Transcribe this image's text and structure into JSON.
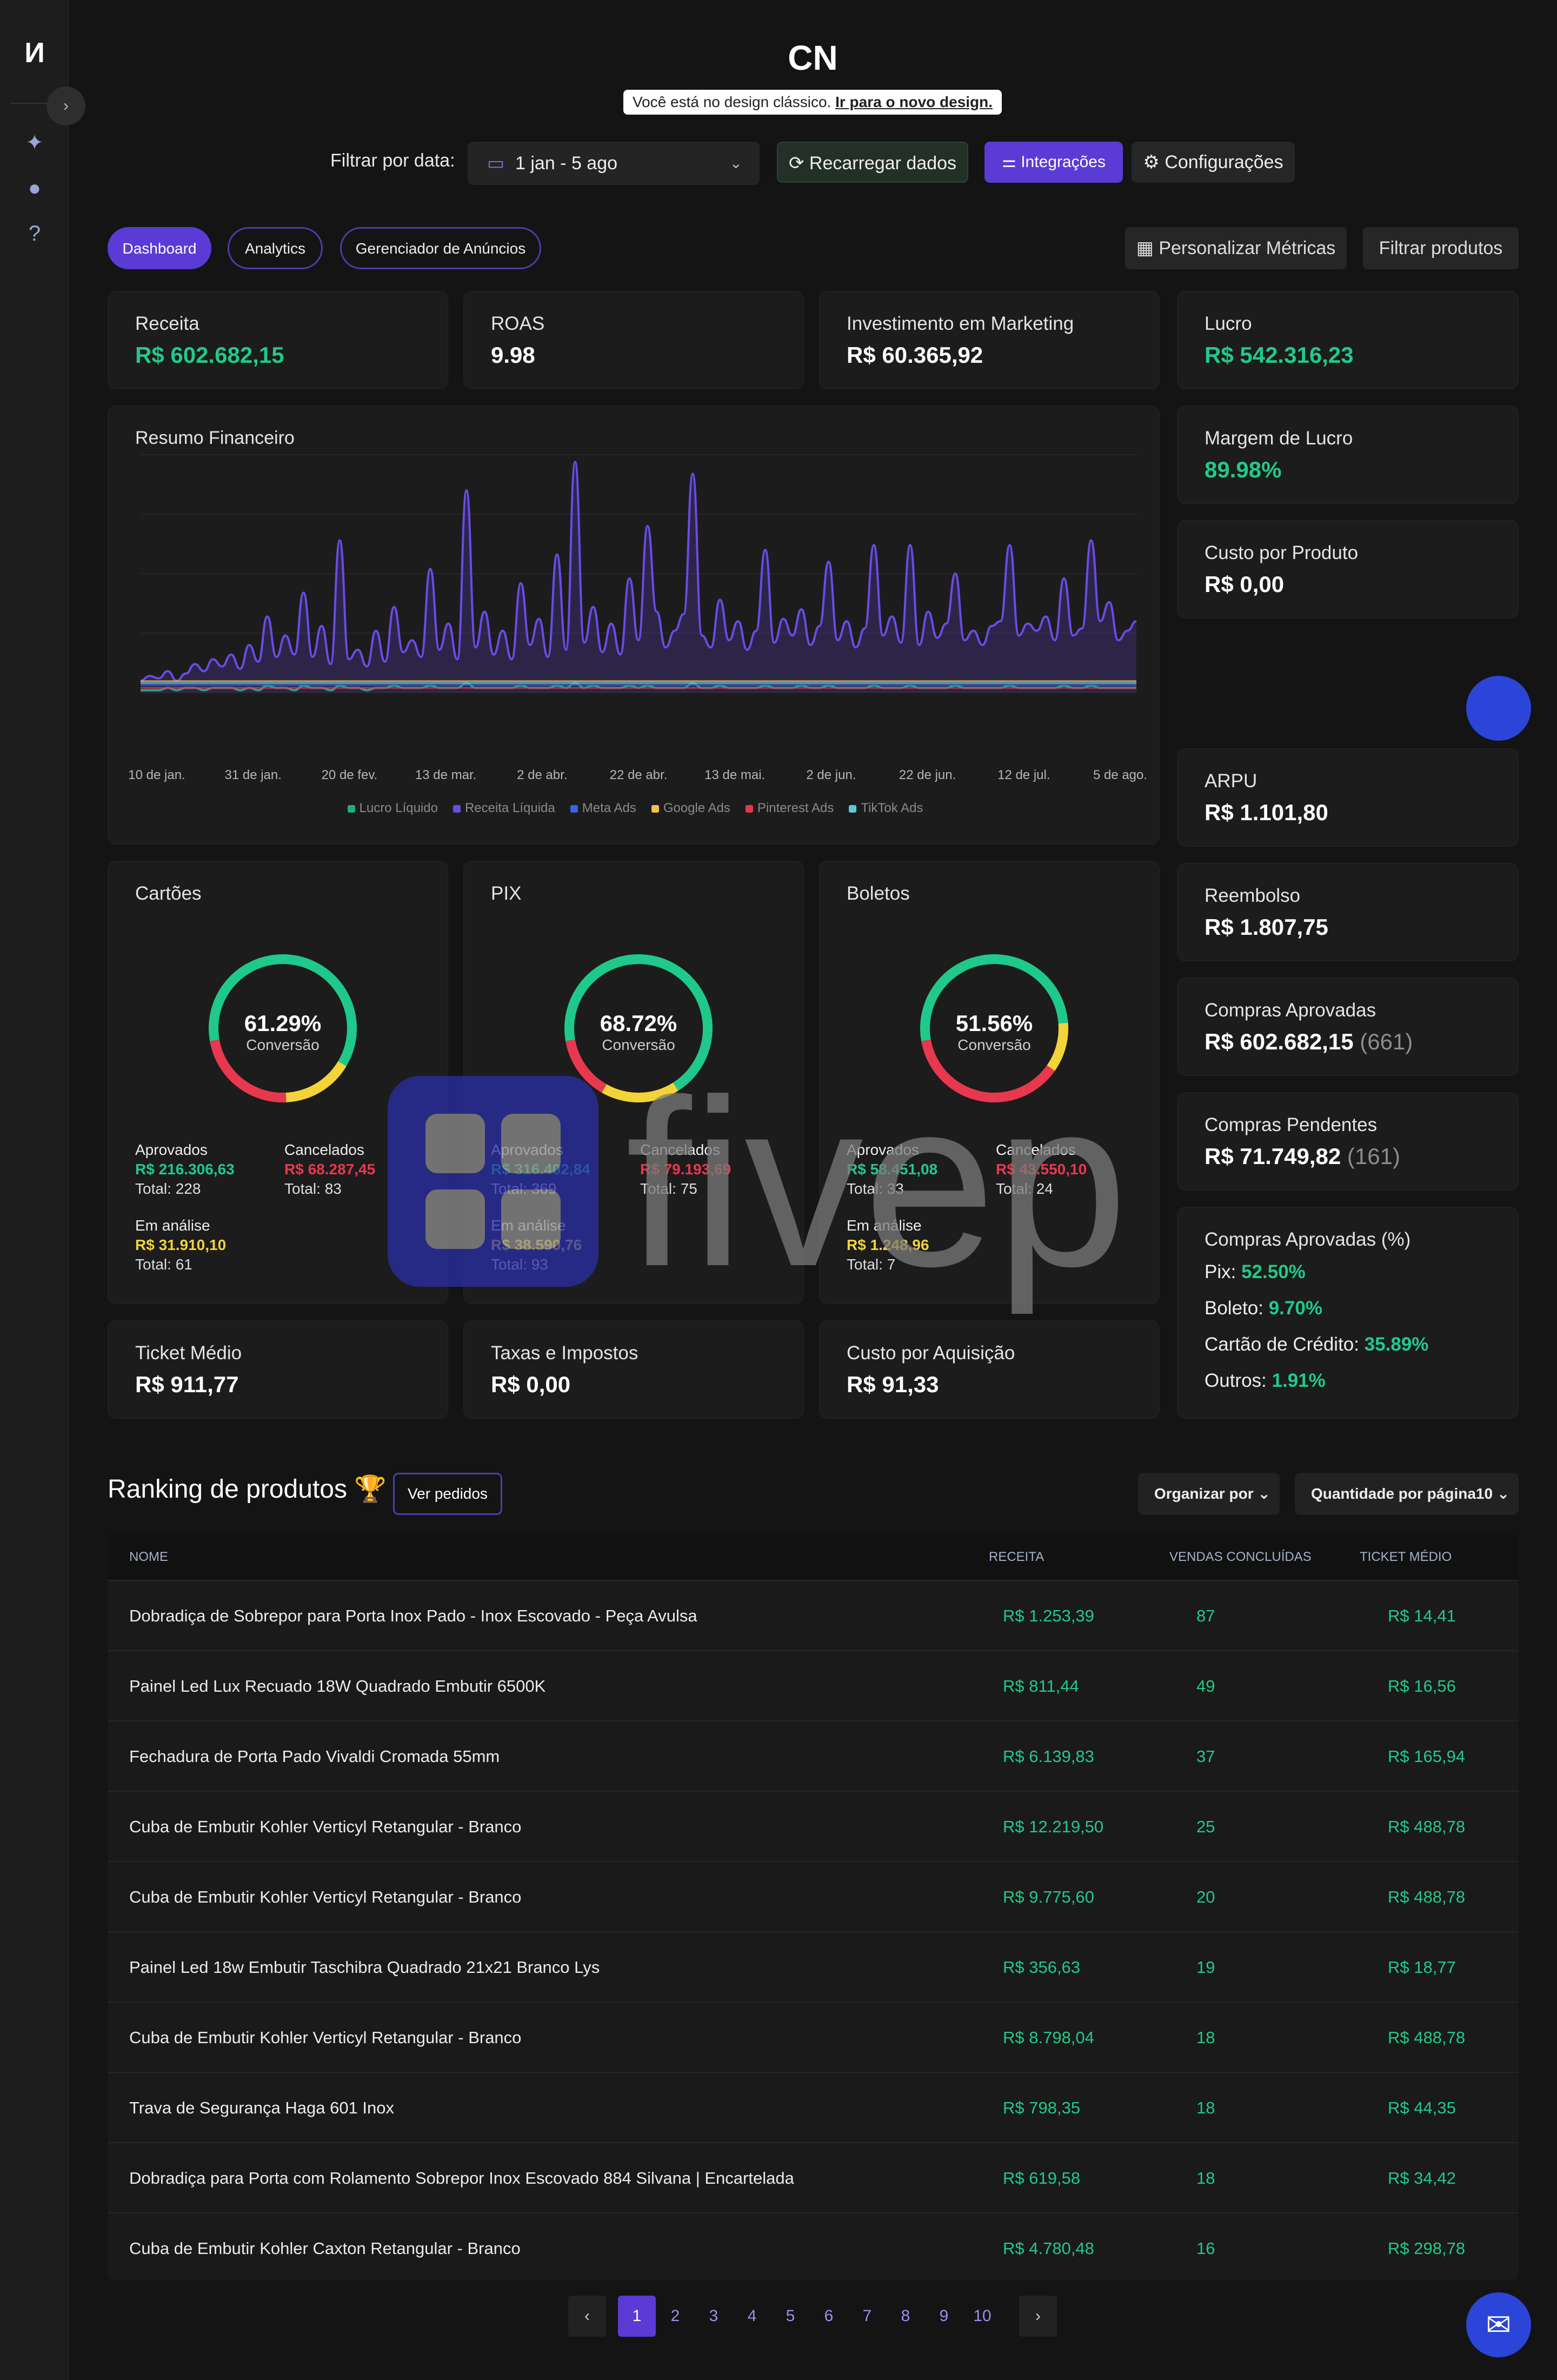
{
  "app": {
    "logo": "И",
    "title": "CN"
  },
  "banner": {
    "text": "Você está no design clássico. ",
    "link": "Ir para o novo design."
  },
  "filter": {
    "label": "Filtrar por data:",
    "date_range": "1 jan - 5 ago",
    "reload": "Recarregar dados",
    "integrations": "Integrações",
    "settings": "Configurações"
  },
  "tabs": [
    {
      "label": "Dashboard"
    },
    {
      "label": "Analytics"
    },
    {
      "label": "Gerenciador de Anúncios"
    }
  ],
  "actions": {
    "personalize": "Personalizar Métricas",
    "filter_products": "Filtrar produtos"
  },
  "kpis": {
    "receita": {
      "label": "Receita",
      "value": "R$ 602.682,15"
    },
    "roas": {
      "label": "ROAS",
      "value": "9.98"
    },
    "investimento": {
      "label": "Investimento em Marketing",
      "value": "R$ 60.365,92"
    },
    "lucro": {
      "label": "Lucro",
      "value": "R$ 542.316,23"
    },
    "margem": {
      "label": "Margem de Lucro",
      "value": "89.98%"
    },
    "custo_produto": {
      "label": "Custo por Produto",
      "value": "R$ 0,00"
    },
    "arpu": {
      "label": "ARPU",
      "value": "R$ 1.101,80"
    },
    "reembolso": {
      "label": "Reembolso",
      "value": "R$ 1.807,75"
    },
    "aprovadas": {
      "label": "Compras Aprovadas",
      "value": "R$ 602.682,15",
      "count": "(661)"
    },
    "pendentes": {
      "label": "Compras Pendentes",
      "value": "R$ 71.749,82",
      "count": "(161)"
    },
    "ticket": {
      "label": "Ticket Médio",
      "value": "R$ 911,77"
    },
    "taxas": {
      "label": "Taxas e Impostos",
      "value": "R$ 0,00"
    },
    "cpa": {
      "label": "Custo por Aquisição",
      "value": "R$ 91,33"
    }
  },
  "aprov_pct": {
    "label": "Compras Aprovadas (%)",
    "rows": [
      {
        "label": "Pix:",
        "value": "52.50%"
      },
      {
        "label": "Boleto:",
        "value": "9.70%"
      },
      {
        "label": "Cartão de Crédito:",
        "value": "35.89%"
      },
      {
        "label": "Outros:",
        "value": "1.91%"
      }
    ]
  },
  "chart": {
    "title": "Resumo Financeiro"
  },
  "chart_data": {
    "type": "line",
    "title": "Resumo Financeiro",
    "x_ticks": [
      "10 de jan.",
      "31 de jan.",
      "20 de fev.",
      "13 de mar.",
      "2 de abr.",
      "22 de abr.",
      "13 de mai.",
      "2 de jun.",
      "22 de jun.",
      "12 de jul.",
      "5 de ago."
    ],
    "legend": [
      "Lucro Líquido",
      "Receita Líquida",
      "Meta Ads",
      "Google Ads",
      "Pinterest Ads",
      "TikTok Ads"
    ],
    "colors": [
      "#23a985",
      "#6a4be6",
      "#3b63e8",
      "#f2c14e",
      "#e23a4a",
      "#5fc7d8"
    ],
    "series": [
      {
        "name": "Receita Líquida",
        "values": [
          0.5,
          0.7,
          0.6,
          0.9,
          0.5,
          0.8,
          1.2,
          0.9,
          1.4,
          1.1,
          1.6,
          1.0,
          2.0,
          1.3,
          3.2,
          1.5,
          2.4,
          1.6,
          4.2,
          1.5,
          2.8,
          1.2,
          6.4,
          1.4,
          1.8,
          1.1,
          2.6,
          1.3,
          3.6,
          1.7,
          2.2,
          1.5,
          5.2,
          1.8,
          2.9,
          1.4,
          8.5,
          1.9,
          3.4,
          1.6,
          2.6,
          1.4,
          4.6,
          2.0,
          3.1,
          1.5,
          5.8,
          1.8,
          9.7,
          2.1,
          3.6,
          1.7,
          2.9,
          1.6,
          4.8,
          2.2,
          7.0,
          3.4,
          1.9,
          2.6,
          3.3,
          9.2,
          2.4,
          1.9,
          3.9,
          2.2,
          3.0,
          1.8,
          2.6,
          6.0,
          2.1,
          3.1,
          2.4,
          3.5,
          2.0,
          2.8,
          5.5,
          2.2,
          3.0,
          1.9,
          2.7,
          6.2,
          2.4,
          3.2,
          2.1,
          6.2,
          2.0,
          3.4,
          2.3,
          2.9,
          5.0,
          2.2,
          2.6,
          2.0,
          2.8,
          3.0,
          6.2,
          2.4,
          2.9,
          2.6,
          3.2,
          2.2,
          4.8,
          2.4,
          2.7,
          6.4,
          3.0,
          3.8,
          2.2,
          2.6,
          3.0
        ]
      },
      {
        "name": "Lucro Líquido",
        "values": [
          0.1,
          0.1,
          0.1,
          0.2,
          0.1,
          0.2,
          0.2,
          0.1,
          0.2,
          0.2,
          0.2,
          0.1,
          0.2,
          0.1,
          0.3,
          0.2,
          0.2,
          0.1,
          0.3,
          0.2,
          0.2,
          0.1,
          0.3,
          0.2,
          0.2,
          0.1,
          0.2,
          0.2,
          0.3,
          0.2,
          0.2,
          0.2,
          0.3,
          0.2,
          0.2,
          0.2,
          0.4,
          0.2,
          0.2,
          0.2,
          0.2,
          0.2,
          0.3,
          0.2,
          0.2,
          0.2,
          0.3,
          0.2,
          0.4,
          0.2,
          0.3,
          0.2,
          0.2,
          0.2,
          0.3,
          0.2,
          0.3,
          0.2,
          0.2,
          0.2,
          0.2,
          0.4,
          0.2,
          0.2,
          0.3,
          0.2,
          0.2,
          0.2,
          0.2,
          0.3,
          0.2,
          0.2,
          0.2,
          0.3,
          0.2,
          0.2,
          0.3,
          0.2,
          0.2,
          0.2,
          0.2,
          0.3,
          0.2,
          0.2,
          0.2,
          0.3,
          0.2,
          0.2,
          0.2,
          0.2,
          0.3,
          0.2,
          0.2,
          0.2,
          0.2,
          0.2,
          0.3,
          0.2,
          0.2,
          0.2,
          0.2,
          0.2,
          0.3,
          0.2,
          0.2,
          0.3,
          0.2,
          0.2,
          0.2,
          0.2,
          0.2
        ]
      }
    ]
  },
  "payments": [
    {
      "title": "Cartões",
      "pct": "61.29%",
      "conv": "Conversão",
      "approved_pct": 61.29,
      "cancel_pct": 23.0,
      "approved": "R$ 216.306,63",
      "approved_total": "228",
      "canceled": "R$ 68.287,45",
      "canceled_total": "83",
      "analysis": "R$ 31.910,10",
      "analysis_total": "61"
    },
    {
      "title": "PIX",
      "pct": "68.72%",
      "conv": "Conversão",
      "approved_pct": 68.72,
      "cancel_pct": 14.0,
      "approved": "R$ 316.402,84",
      "approved_total": "369",
      "canceled": "R$ 79.193,69",
      "canceled_total": "75",
      "analysis": "R$ 38.590,76",
      "analysis_total": "93"
    },
    {
      "title": "Boletos",
      "pct": "51.56%",
      "conv": "Conversão",
      "approved_pct": 51.56,
      "cancel_pct": 37.5,
      "approved": "R$ 58.451,08",
      "approved_total": "33",
      "canceled": "R$ 43.550,10",
      "canceled_total": "24",
      "analysis": "R$ 1.248,96",
      "analysis_total": "7"
    }
  ],
  "pay_labels": {
    "approved": "Aprovados",
    "canceled": "Cancelados",
    "analysis": "Em análise",
    "total": "Total: "
  },
  "ranking": {
    "title": "Ranking de produtos 🏆",
    "view_orders": "Ver pedidos",
    "sort": "Organizar por",
    "per_page": "Quantidade por página",
    "per_page_value": "10",
    "columns": [
      "NOME",
      "RECEITA",
      "VENDAS CONCLUÍDAS",
      "TICKET MÉDIO"
    ],
    "rows": [
      {
        "name": "Dobradiça de Sobrepor para Porta Inox Pado - Inox Escovado - Peça Avulsa",
        "receita": "R$ 1.253,39",
        "vendas": "87",
        "ticket": "R$ 14,41"
      },
      {
        "name": "Painel Led Lux Recuado 18W Quadrado Embutir 6500K",
        "receita": "R$ 811,44",
        "vendas": "49",
        "ticket": "R$ 16,56"
      },
      {
        "name": "Fechadura de Porta Pado Vivaldi Cromada 55mm",
        "receita": "R$ 6.139,83",
        "vendas": "37",
        "ticket": "R$ 165,94"
      },
      {
        "name": "Cuba de Embutir Kohler Verticyl Retangular - Branco",
        "receita": "R$ 12.219,50",
        "vendas": "25",
        "ticket": "R$ 488,78"
      },
      {
        "name": "Cuba de Embutir Kohler Verticyl Retangular - Branco",
        "receita": "R$ 9.775,60",
        "vendas": "20",
        "ticket": "R$ 488,78"
      },
      {
        "name": "Painel Led 18w Embutir Taschibra Quadrado 21x21 Branco Lys",
        "receita": "R$ 356,63",
        "vendas": "19",
        "ticket": "R$ 18,77"
      },
      {
        "name": "Cuba de Embutir Kohler Verticyl Retangular - Branco",
        "receita": "R$ 8.798,04",
        "vendas": "18",
        "ticket": "R$ 488,78"
      },
      {
        "name": "Trava de Segurança Haga 601 Inox",
        "receita": "R$ 798,35",
        "vendas": "18",
        "ticket": "R$ 44,35"
      },
      {
        "name": "Dobradiça para Porta com Rolamento Sobrepor Inox Escovado 884 Silvana | Encartelada",
        "receita": "R$ 619,58",
        "vendas": "18",
        "ticket": "R$ 34,42"
      },
      {
        "name": "Cuba de Embutir Kohler Caxton Retangular - Branco",
        "receita": "R$ 4.780,48",
        "vendas": "16",
        "ticket": "R$ 298,78"
      }
    ]
  },
  "pagination": {
    "prev": "‹",
    "next": "›",
    "pages": [
      "1",
      "2",
      "3",
      "4",
      "5",
      "6",
      "7",
      "8",
      "9",
      "10"
    ],
    "current": "1"
  },
  "watermark": {
    "text": "fivep"
  }
}
